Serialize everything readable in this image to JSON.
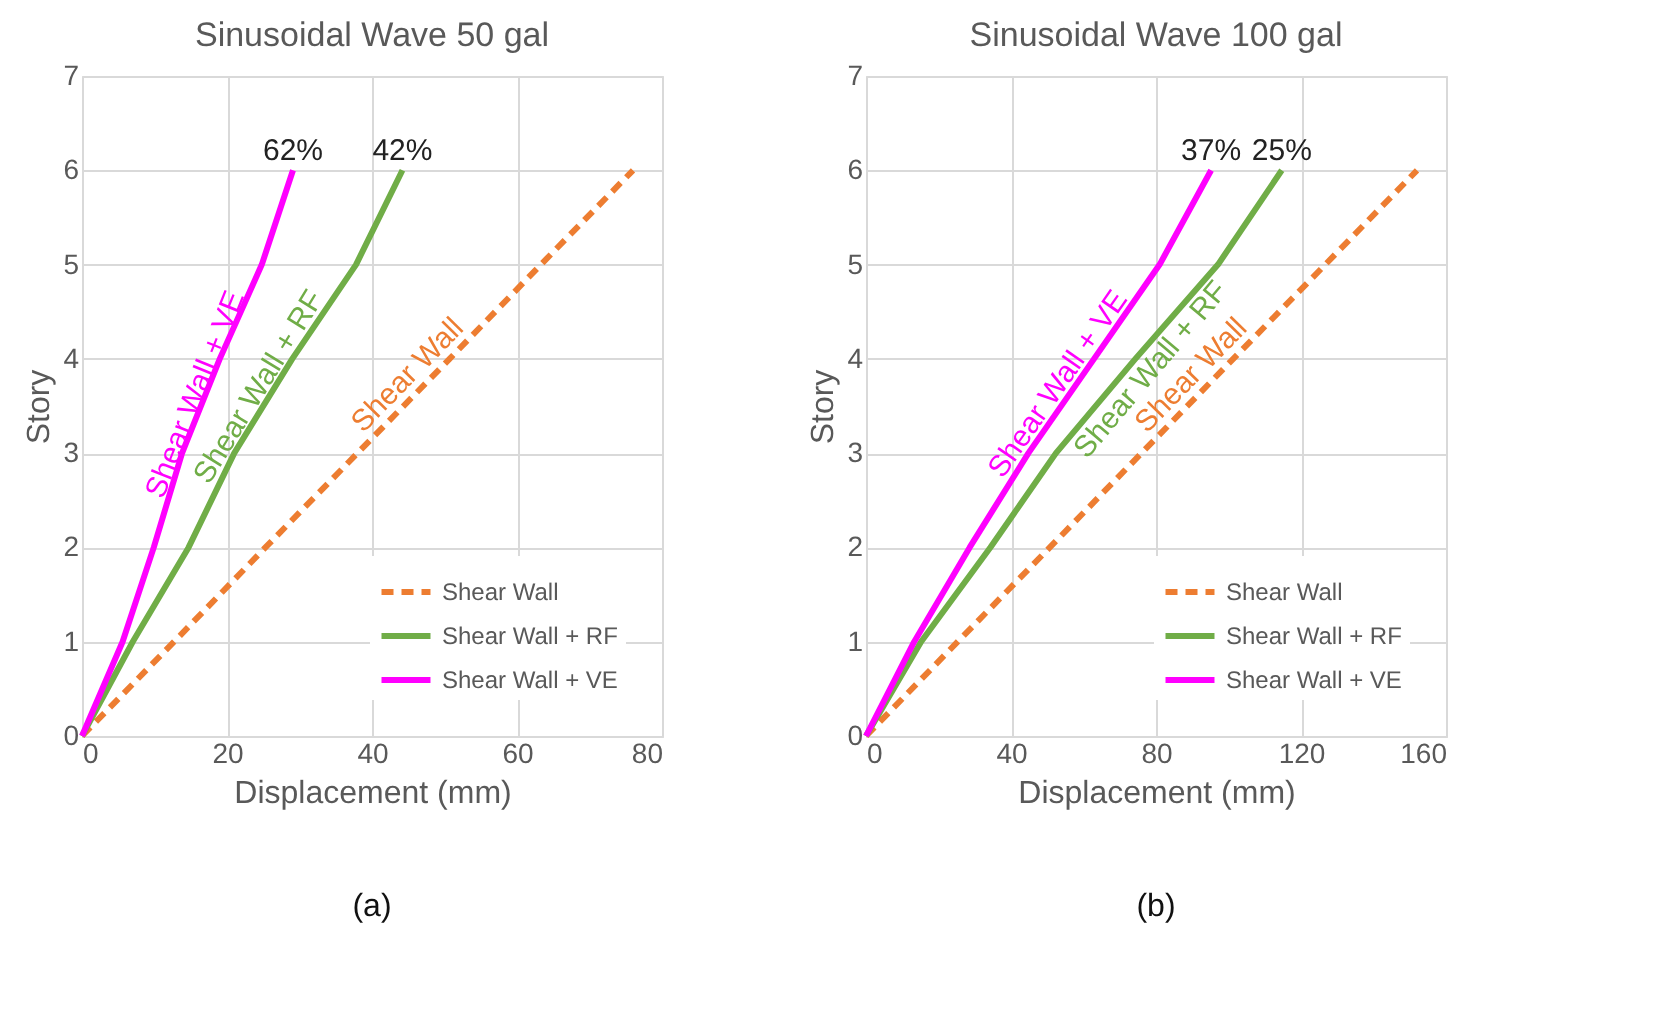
{
  "chart_data": [
    {
      "type": "line",
      "title": "Sinusoidal Wave 50 gal",
      "xlabel": "Displacement (mm)",
      "ylabel": "Story",
      "xlim": [
        0,
        80
      ],
      "xticks": [
        0,
        20,
        40,
        60,
        80
      ],
      "ylim": [
        0,
        7
      ],
      "yticks": [
        0,
        1,
        2,
        3,
        4,
        5,
        6,
        7
      ],
      "grid": true,
      "legend": "bottom right",
      "series": [
        {
          "name": "Shear Wall",
          "color": "#ed7d31",
          "line_style": "dashed",
          "x": [
            0,
            12.7,
            25.3,
            38,
            50.7,
            63.3,
            76
          ],
          "values": [
            0,
            1,
            2,
            3,
            4,
            5,
            6
          ]
        },
        {
          "name": "Shear Wall + RF",
          "color": "#70ad47",
          "line_style": "solid",
          "x": [
            0,
            7,
            14.7,
            21,
            29,
            37.8,
            44.2
          ],
          "values": [
            0,
            1,
            2,
            3,
            4,
            5,
            6
          ]
        },
        {
          "name": "Shear Wall + VE",
          "color": "#ff00ff",
          "line_style": "solid",
          "x": [
            0,
            5.6,
            9.9,
            13.8,
            19,
            24.8,
            29.1
          ],
          "values": [
            0,
            1,
            2,
            3,
            4,
            5,
            6
          ]
        }
      ],
      "annotations": [
        {
          "text": "62%",
          "x": 29.1,
          "y": 6
        },
        {
          "text": "42%",
          "x": 44.2,
          "y": 6
        },
        "(a)"
      ]
    },
    {
      "type": "line",
      "title": "Sinusoidal Wave 100 gal",
      "xlabel": "Displacement (mm)",
      "ylabel": "Story",
      "xlim": [
        0,
        160
      ],
      "xticks": [
        0,
        40,
        80,
        120,
        160
      ],
      "ylim": [
        0,
        7
      ],
      "yticks": [
        0,
        1,
        2,
        3,
        4,
        5,
        6,
        7
      ],
      "grid": true,
      "legend": "bottom right",
      "series": [
        {
          "name": "Shear Wall",
          "color": "#ed7d31",
          "line_style": "dashed",
          "x": [
            0,
            25.3,
            50.7,
            76,
            101.3,
            126.7,
            152
          ],
          "values": [
            0,
            1,
            2,
            3,
            4,
            5,
            6
          ]
        },
        {
          "name": "Shear Wall + RF",
          "color": "#70ad47",
          "line_style": "solid",
          "x": [
            0,
            15.2,
            34.3,
            52.4,
            74.3,
            97.1,
            114.7
          ],
          "values": [
            0,
            1,
            2,
            3,
            4,
            5,
            6
          ]
        },
        {
          "name": "Shear Wall + VE",
          "color": "#ff00ff",
          "line_style": "solid",
          "x": [
            0,
            13.3,
            28.6,
            44.8,
            62.9,
            81,
            95.2
          ],
          "values": [
            0,
            1,
            2,
            3,
            4,
            5,
            6
          ]
        }
      ],
      "annotations": [
        {
          "text": "37%",
          "x": 95.2,
          "y": 6
        },
        {
          "text": "25%",
          "x": 114.7,
          "y": 6
        },
        "(b)"
      ]
    }
  ]
}
